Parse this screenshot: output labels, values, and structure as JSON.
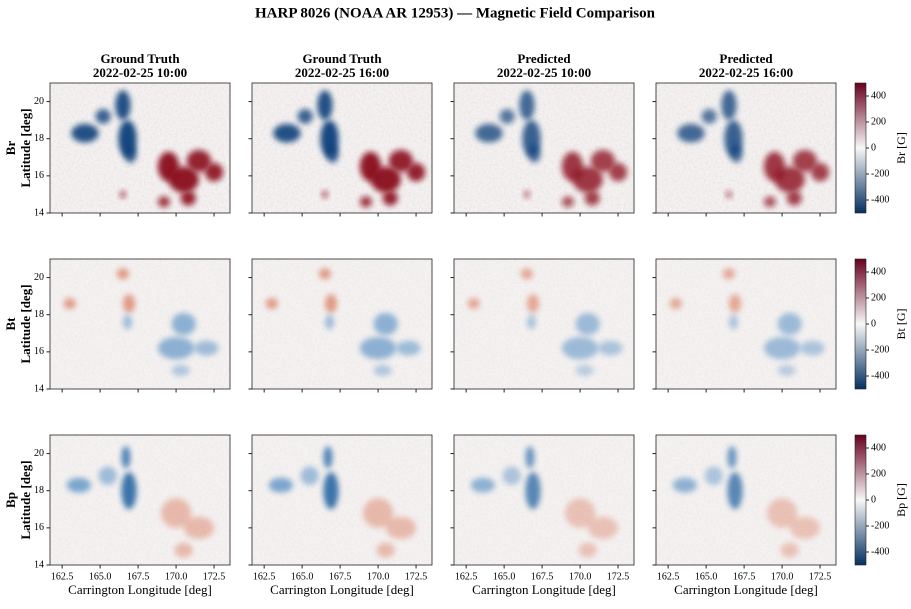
{
  "chart_data": {
    "type": "heatmap",
    "title": "HARP 8026 (NOAA AR 12953) — Magnetic Field Comparison",
    "columns": [
      {
        "title": "Ground Truth",
        "time": "2022-02-25 10:00"
      },
      {
        "title": "Ground Truth",
        "time": "2022-02-25 16:00"
      },
      {
        "title": "Predicted",
        "time": "2022-02-25 10:00"
      },
      {
        "title": "Predicted",
        "time": "2022-02-25 16:00"
      }
    ],
    "rows": [
      {
        "name": "Br",
        "colorbar_label": "Br [G]"
      },
      {
        "name": "Bt",
        "colorbar_label": "Bt [G]"
      },
      {
        "name": "Bp",
        "colorbar_label": "Bp [G]"
      }
    ],
    "xlabel": "Carrington Longitude [deg]",
    "ylabel": "Latitude [deg]",
    "xlim": [
      161.7,
      173.55
    ],
    "ylim": [
      14,
      21
    ],
    "xticks": [
      162.5,
      {
        "value": 165,
        "label": "165.0"
      },
      167.5,
      {
        "value": 170,
        "label": "170.0"
      },
      172.5
    ],
    "yticks": [
      14,
      16,
      18,
      20
    ],
    "clim": [
      -500,
      500
    ],
    "cticks": [
      -400,
      -200,
      0,
      200,
      400
    ],
    "colormap": [
      "#053061",
      "#f7f7f7",
      "#67001f"
    ]
  }
}
